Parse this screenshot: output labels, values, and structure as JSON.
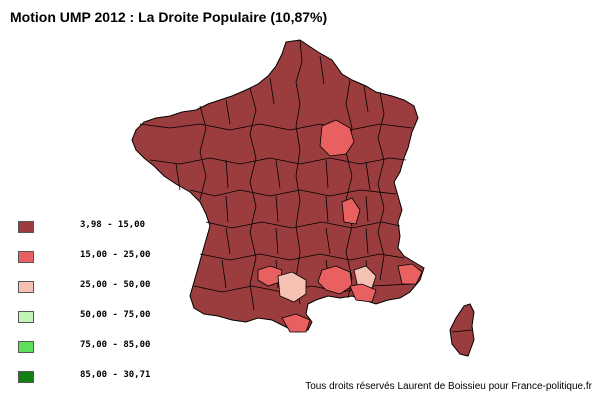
{
  "title": "Motion UMP 2012 : La Droite Populaire (10,87%)",
  "legend": [
    {
      "label": "3,98 - 15,00",
      "color": "#9b3d3e"
    },
    {
      "label": "15,00 - 25,00",
      "color": "#e8605f"
    },
    {
      "label": "25,00 - 50,00",
      "color": "#f5c1b3"
    },
    {
      "label": "50,00 - 75,00",
      "color": "#c0f5b6"
    },
    {
      "label": "75,00 - 85,00",
      "color": "#5fe05a"
    },
    {
      "label": "85,00 - 30,71",
      "color": "#138013"
    }
  ],
  "credit": "Tous droits réservés Laurent de Boissieu pour France-politique.fr",
  "map_colors": {
    "border": "#000000",
    "background": "#ffffff"
  }
}
